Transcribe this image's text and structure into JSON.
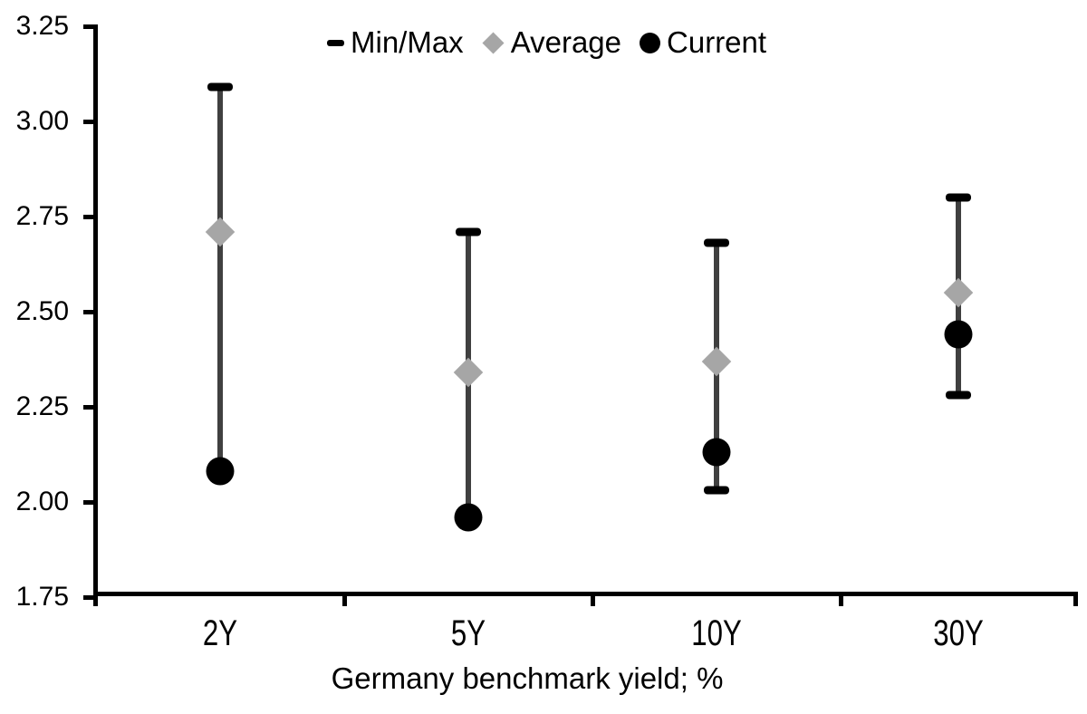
{
  "chart_data": {
    "type": "scatter",
    "subtype": "min-max-range-with-points",
    "title": "",
    "xlabel": "Germany benchmark yield; %",
    "ylabel": "",
    "categories": [
      "2Y",
      "5Y",
      "10Y",
      "30Y"
    ],
    "series": [
      {
        "name": "Min/Max",
        "marker": "range-bar",
        "min": [
          2.08,
          1.96,
          2.03,
          2.28
        ],
        "max": [
          3.09,
          2.71,
          2.68,
          2.8
        ]
      },
      {
        "name": "Average",
        "marker": "diamond",
        "values": [
          2.71,
          2.34,
          2.37,
          2.55
        ]
      },
      {
        "name": "Current",
        "marker": "circle",
        "values": [
          2.08,
          1.96,
          2.13,
          2.44
        ]
      }
    ],
    "ylim": [
      1.75,
      3.25
    ],
    "ytick_step": 0.25,
    "ytick_labels": [
      "3.25",
      "3.00",
      "2.75",
      "2.50",
      "2.25",
      "2.00",
      "1.75"
    ],
    "grid": false,
    "legend_position": "top-center",
    "note": "min caps at 2Y and 5Y coincide with Current markers and are hidden behind them"
  },
  "legend": {
    "items": [
      {
        "label": "Min/Max",
        "marker": "dash"
      },
      {
        "label": "Average",
        "marker": "diamond"
      },
      {
        "label": "Current",
        "marker": "circle"
      }
    ]
  },
  "colors": {
    "black": "#000000",
    "range_line": "#404040",
    "average_gray": "#a6a6a6",
    "background": "#ffffff",
    "text": "#000000"
  }
}
